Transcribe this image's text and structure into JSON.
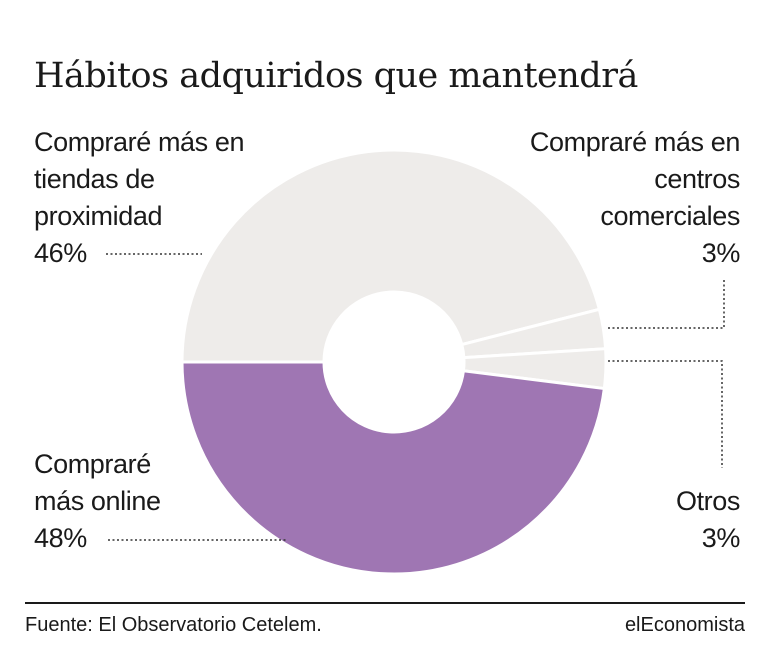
{
  "title": "Hábitos adquiridos que mantendrá",
  "chart_data": {
    "type": "pie",
    "donut": true,
    "title": "Hábitos adquiridos que mantendrá",
    "slices": [
      {
        "name": "Compraré más online",
        "label_lines": [
          "Compraré",
          "más online"
        ],
        "value": 48,
        "value_label": "48%",
        "color": "#9f76b3"
      },
      {
        "name": "Compraré más en tiendas de proximidad",
        "label_lines": [
          "Compraré más en",
          "tiendas de",
          "proximidad"
        ],
        "value": 46,
        "value_label": "46%",
        "color": "#eeecea"
      },
      {
        "name": "Compraré más en centros comerciales",
        "label_lines": [
          "Compraré más en",
          "centros",
          "comerciales"
        ],
        "value": 3,
        "value_label": "3%",
        "color": "#eeecea"
      },
      {
        "name": "Otros",
        "label_lines": [
          "Otros"
        ],
        "value": 3,
        "value_label": "3%",
        "color": "#eeecea"
      }
    ]
  },
  "footer": {
    "source": "Fuente: El Observatorio Cetelem.",
    "brand": "elEconomista"
  }
}
